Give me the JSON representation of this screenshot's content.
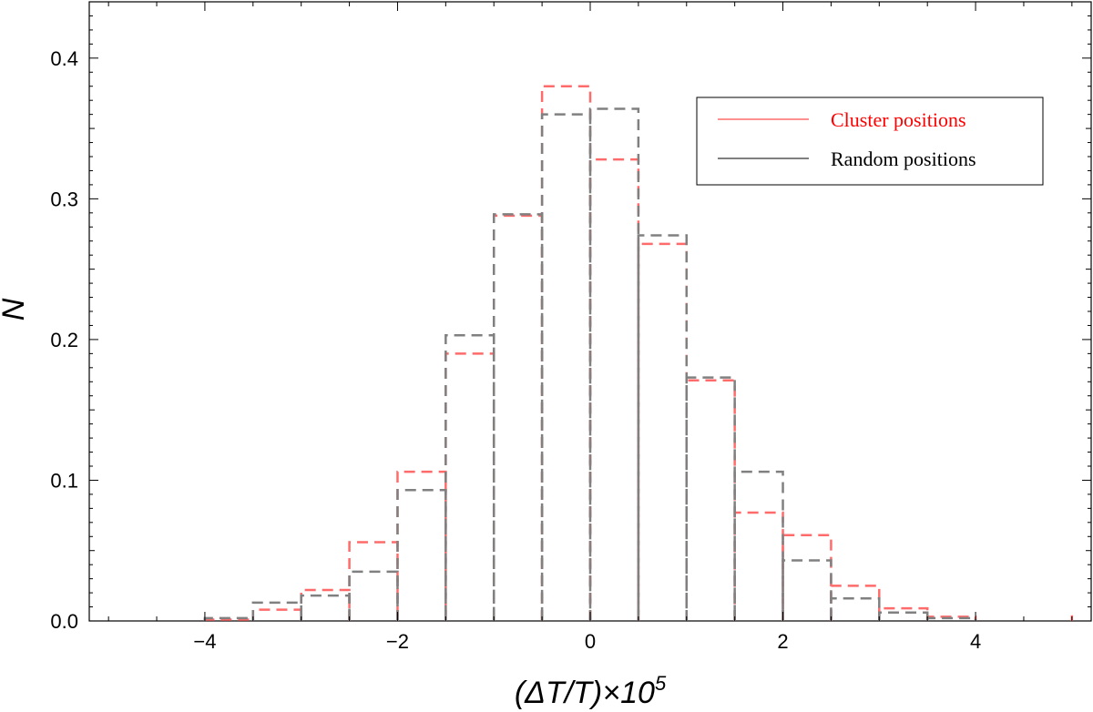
{
  "chart_data": {
    "type": "histogram",
    "title": "",
    "xlabel": "(ΔT/T)×10",
    "xlabel_superscript": "5",
    "ylabel": "N",
    "xlim": [
      -5.2,
      5.2
    ],
    "ylim": [
      0,
      0.44
    ],
    "x_major_ticks": [
      -4,
      -2,
      0,
      2,
      4
    ],
    "x_tick_labels": [
      "−4",
      "−2",
      "0",
      "2",
      "4"
    ],
    "y_major_ticks": [
      0.0,
      0.1,
      0.2,
      0.3,
      0.4
    ],
    "y_tick_labels": [
      "0.0",
      "0.1",
      "0.2",
      "0.3",
      "0.4"
    ],
    "grid": false,
    "legend_placement": "top-right",
    "bin_edges": [
      -4.5,
      -4.0,
      -3.5,
      -3.0,
      -2.5,
      -2.0,
      -1.5,
      -1.0,
      -0.5,
      0.0,
      0.5,
      1.0,
      1.5,
      2.0,
      2.5,
      3.0,
      3.5,
      4.0,
      4.5,
      5.0
    ],
    "series": [
      {
        "name": "Cluster positions",
        "color": "#ff6b6b",
        "values": [
          0.0,
          0.001,
          0.008,
          0.022,
          0.056,
          0.106,
          0.19,
          0.288,
          0.38,
          0.328,
          0.268,
          0.171,
          0.077,
          0.061,
          0.025,
          0.009,
          0.003,
          0.0,
          0.0,
          0.004
        ]
      },
      {
        "name": "Random positions",
        "color": "#808080",
        "values": [
          0.0,
          0.002,
          0.013,
          0.018,
          0.035,
          0.093,
          0.203,
          0.289,
          0.36,
          0.364,
          0.274,
          0.173,
          0.106,
          0.043,
          0.016,
          0.006,
          0.002,
          0.0,
          0.0,
          0.0
        ]
      }
    ]
  }
}
